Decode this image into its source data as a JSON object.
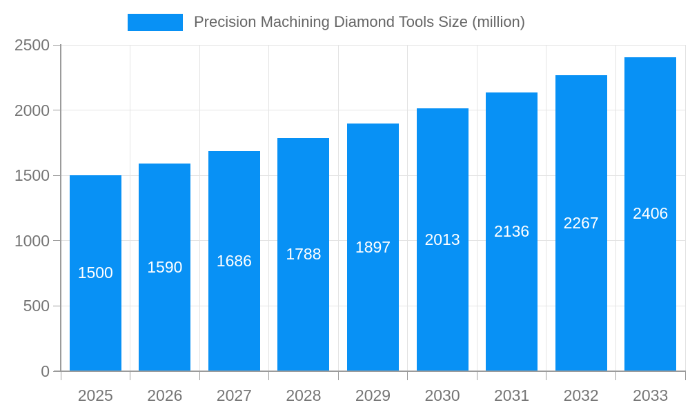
{
  "chart_data": {
    "type": "bar",
    "title": "Precision Machining Diamond Tools Size (million)",
    "categories": [
      "2025",
      "2026",
      "2027",
      "2028",
      "2029",
      "2030",
      "2031",
      "2032",
      "2033"
    ],
    "values": [
      1500,
      1590,
      1686,
      1788,
      1897,
      2013,
      2136,
      2267,
      2406
    ],
    "y_ticks": [
      0,
      500,
      1000,
      1500,
      2000,
      2500
    ],
    "ylim": [
      0,
      2500
    ],
    "xlabel": "",
    "ylabel": "",
    "legend_position": "top",
    "grid": true,
    "bar_labels_inside": true,
    "colors": {
      "bar": "#0891f5",
      "bar_label": "#ffffff",
      "gridline": "#e3e3e3",
      "axis_line": "#9b9b9b",
      "tick_text": "#757575",
      "legend_text": "#666666",
      "background": "#ffffff"
    }
  }
}
